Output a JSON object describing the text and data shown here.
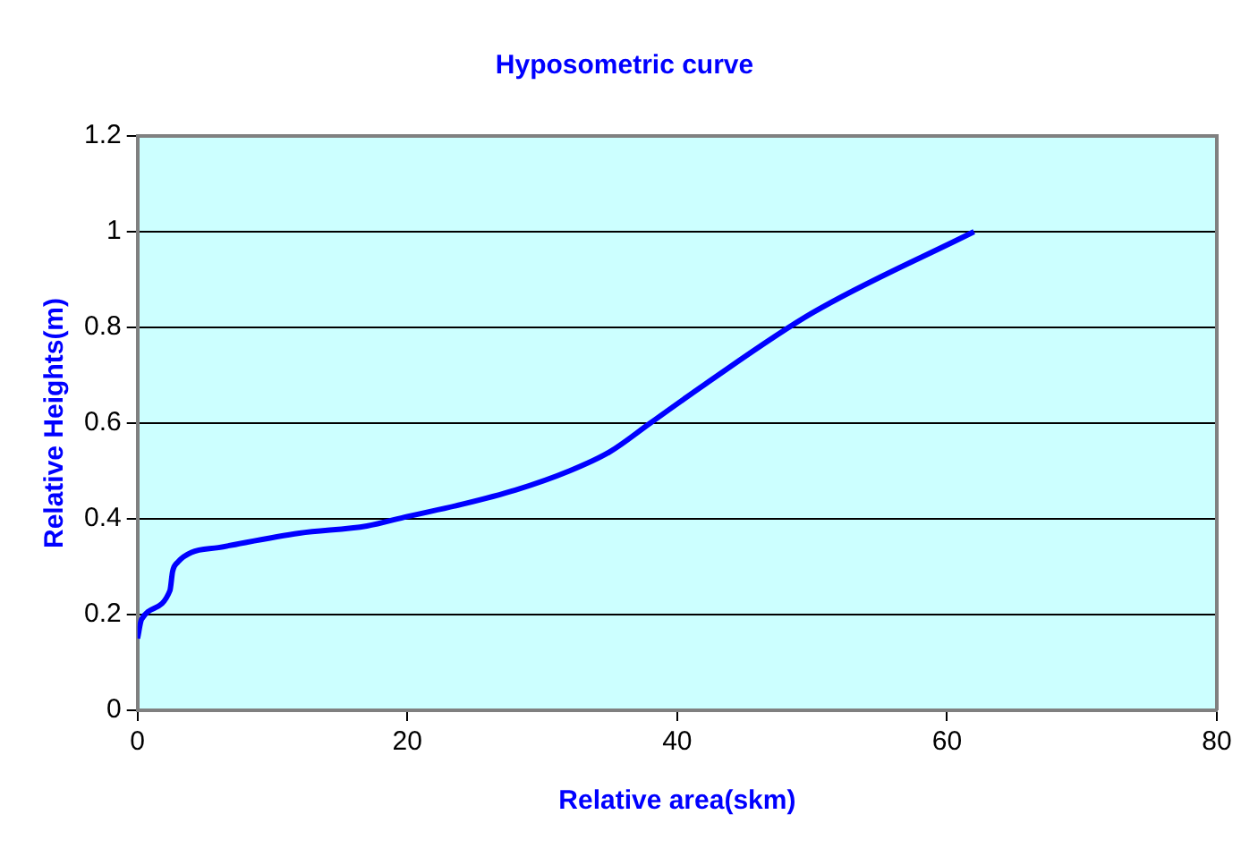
{
  "chart_data": {
    "type": "line",
    "title": "Hyposometric curve",
    "xlabel": "Relative area(skm)",
    "ylabel": "Relative Heights(m)",
    "series": [
      {
        "color": "#0000ff",
        "x": [
          0,
          0.3,
          2.4,
          2.6,
          3,
          4,
          6,
          12,
          17,
          20,
          24,
          28,
          32,
          35,
          38,
          42,
          50,
          62
        ],
        "values": [
          0.15,
          0.19,
          0.25,
          0.29,
          0.31,
          0.33,
          0.34,
          0.37,
          0.385,
          0.405,
          0.43,
          0.46,
          0.5,
          0.54,
          0.6,
          0.68,
          0.83,
          1.0
        ]
      }
    ],
    "xlim": [
      0,
      80
    ],
    "xticks": [
      0,
      20,
      40,
      60,
      80
    ],
    "ylim": [
      0,
      1.2
    ],
    "yticks": [
      0,
      0.2,
      0.4,
      0.6,
      0.8,
      1,
      1.2
    ],
    "grid": "y",
    "legend": false,
    "marker": "none",
    "line_style": "solid"
  }
}
